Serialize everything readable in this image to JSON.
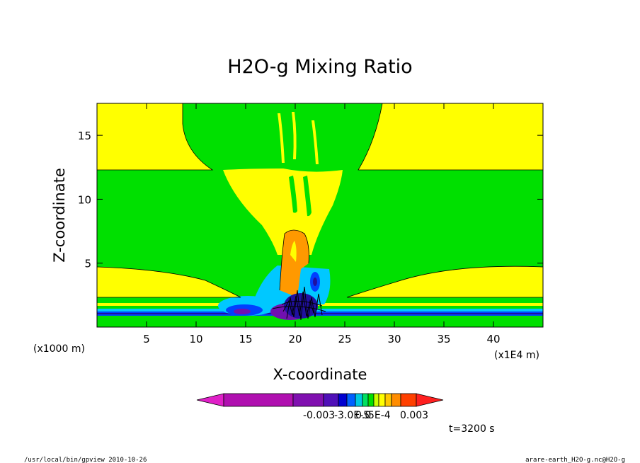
{
  "chart_data": {
    "type": "heatmap",
    "title": "H2O-g Mixing Ratio",
    "xlabel": "X-coordinate",
    "ylabel": "Z-coordinate",
    "x_unit_label": "(x1E4 m)",
    "y_unit_label": "(x1000 m)",
    "xlim": [
      0,
      45
    ],
    "ylim": [
      0,
      17.5
    ],
    "xticks": [
      5,
      10,
      15,
      20,
      25,
      30,
      35,
      40
    ],
    "yticks": [
      5,
      10,
      15
    ],
    "colorbar": {
      "tick_labels": [
        "-0.003",
        "-3.0E-5",
        "0.0",
        "5E-4",
        "0.003"
      ],
      "colors": [
        "#e020c8",
        "#b010b0",
        "#8010b0",
        "#5010b8",
        "#0000d0",
        "#0060ff",
        "#00c8e0",
        "#00e060",
        "#00e000",
        "#c8ff00",
        "#ffff00",
        "#ffc800",
        "#ff8c00",
        "#ff4000",
        "#ff2020"
      ]
    },
    "annotation": "t=3200 s"
  },
  "footer": {
    "left": "/usr/local/bin/gpview  2010-10-26",
    "right": "arare-earth_H2O-g.nc@H2O-g"
  },
  "colors": {
    "green": "#00e000",
    "yellow": "#ffff00",
    "orange": "#ff9900",
    "light_blue": "#00c8ff",
    "blue": "#0040ff",
    "dark_blue": "#2010a0",
    "purple": "#7010b0"
  }
}
